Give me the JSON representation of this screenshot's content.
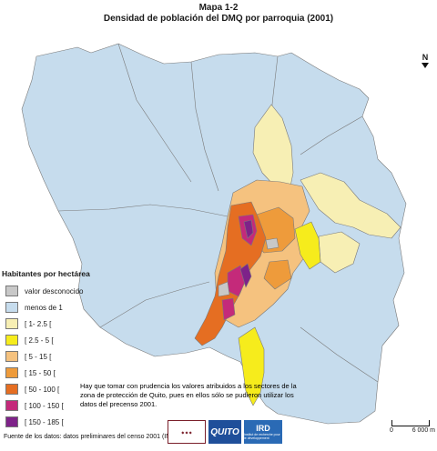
{
  "header": {
    "title": "Mapa 1-2",
    "subtitle": "Densidad de población del DMQ por parroquia (2001)"
  },
  "north": {
    "label": "N"
  },
  "legend": {
    "title": "Habitantes por hectárea",
    "items": [
      {
        "label": "valor desconocido",
        "color": "#c8c8c8"
      },
      {
        "label": "menos de 1",
        "color": "#c6dced"
      },
      {
        "label": "[ 1- 2.5 [",
        "color": "#f7efb4"
      },
      {
        "label": "[ 2.5 - 5 [",
        "color": "#f6ec1c"
      },
      {
        "label": "[ 5 - 15 [",
        "color": "#f5c27f"
      },
      {
        "label": "[ 15 - 50 [",
        "color": "#ee9b3b"
      },
      {
        "label": "[ 50 - 100 [",
        "color": "#e56e22"
      },
      {
        "label": "[ 100 - 150 [",
        "color": "#c42a7a"
      },
      {
        "label": "[ 150 - 185 [",
        "color": "#7e2289"
      }
    ]
  },
  "note": "Hay que tomar con prudencia los valores atribuidos a los sectores de la zona de protección de Quito, pues en ellos sólo se pudieron utilizar los datos del precenso 2001.",
  "source": "Fuente de los datos: datos preliminares del censo 2001 (INEC)",
  "logos": {
    "quito": "QUITO",
    "ird": "IRD",
    "ird_sub": "Institut de recherche pour le développement"
  },
  "scale": {
    "start": "0",
    "end": "6 000 m"
  }
}
